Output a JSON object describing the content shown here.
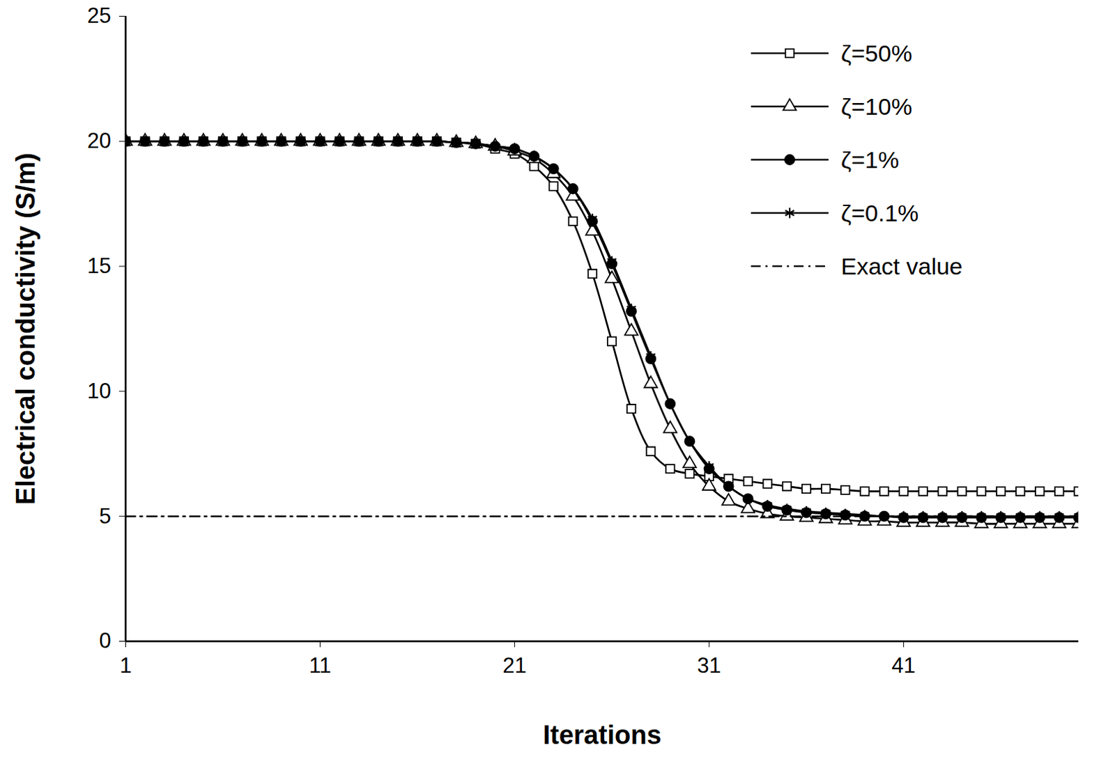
{
  "chart_data": {
    "type": "line",
    "x_label": "Iterations",
    "y_label": "Electrical conductivity (S/m)",
    "x": [
      1,
      2,
      3,
      4,
      5,
      6,
      7,
      8,
      9,
      10,
      11,
      12,
      13,
      14,
      15,
      16,
      17,
      18,
      19,
      20,
      21,
      22,
      23,
      24,
      25,
      26,
      27,
      28,
      29,
      30,
      31,
      32,
      33,
      34,
      35,
      36,
      37,
      38,
      39,
      40,
      41,
      42,
      43,
      44,
      45,
      46,
      47,
      48,
      49,
      50
    ],
    "xlim": [
      1,
      50
    ],
    "xticks": [
      1,
      11,
      21,
      31,
      41
    ],
    "ylim": [
      0,
      25
    ],
    "yticks": [
      0,
      5,
      10,
      15,
      20,
      25
    ],
    "grid": false,
    "legend": "top-right",
    "series": [
      {
        "name": "ζ=50%",
        "color": "#000000",
        "marker": "square-open",
        "line_style": "solid",
        "values": [
          20,
          20,
          20,
          20,
          20,
          20,
          20,
          20,
          20,
          20,
          20,
          20,
          20,
          20,
          20,
          20,
          20,
          19.95,
          19.9,
          19.7,
          19.5,
          19.0,
          18.2,
          16.8,
          14.7,
          12.0,
          9.3,
          7.6,
          6.9,
          6.7,
          6.6,
          6.5,
          6.4,
          6.3,
          6.2,
          6.1,
          6.1,
          6.05,
          6.0,
          6.0,
          6.0,
          6.0,
          6.0,
          6.0,
          6.0,
          6.0,
          6.0,
          6.0,
          6.0,
          6.0
        ]
      },
      {
        "name": "ζ=10%",
        "color": "#000000",
        "marker": "triangle-open",
        "line_style": "solid",
        "values": [
          20,
          20,
          20,
          20,
          20,
          20,
          20,
          20,
          20,
          20,
          20,
          20,
          20,
          20,
          20,
          20,
          20,
          19.95,
          19.9,
          19.8,
          19.6,
          19.3,
          18.7,
          17.8,
          16.4,
          14.5,
          12.4,
          10.3,
          8.5,
          7.1,
          6.2,
          5.6,
          5.3,
          5.1,
          5.0,
          4.95,
          4.9,
          4.85,
          4.8,
          4.8,
          4.75,
          4.75,
          4.75,
          4.75,
          4.7,
          4.7,
          4.7,
          4.7,
          4.7,
          4.7
        ]
      },
      {
        "name": "ζ=1%",
        "color": "#000000",
        "marker": "circle",
        "line_style": "solid",
        "values": [
          20,
          20,
          20,
          20,
          20,
          20,
          20,
          20,
          20,
          20,
          20,
          20,
          20,
          20,
          20,
          20,
          20,
          19.95,
          19.9,
          19.8,
          19.7,
          19.4,
          18.9,
          18.1,
          16.8,
          15.1,
          13.2,
          11.3,
          9.5,
          8.0,
          6.9,
          6.2,
          5.7,
          5.4,
          5.25,
          5.15,
          5.1,
          5.05,
          5.0,
          5.0,
          4.95,
          4.95,
          4.95,
          4.95,
          4.95,
          4.95,
          4.95,
          4.95,
          4.95,
          4.95
        ]
      },
      {
        "name": "ζ=0.1%",
        "color": "#000000",
        "marker": "asterisk",
        "line_style": "solid",
        "values": [
          20,
          20,
          20,
          20,
          20,
          20,
          20,
          20,
          20,
          20,
          20,
          20,
          20,
          20,
          20,
          20,
          20,
          19.95,
          19.9,
          19.8,
          19.7,
          19.4,
          18.9,
          18.1,
          16.9,
          15.2,
          13.3,
          11.4,
          9.5,
          8.0,
          7.0,
          6.2,
          5.7,
          5.45,
          5.3,
          5.2,
          5.15,
          5.1,
          5.05,
          5.0,
          5.0,
          5.0,
          5.0,
          5.0,
          5.0,
          5.0,
          5.0,
          5.0,
          5.0,
          5.0
        ]
      },
      {
        "name": "Exact value",
        "color": "#000000",
        "marker": "none",
        "line_style": "dashdot",
        "values": [
          5,
          5,
          5,
          5,
          5,
          5,
          5,
          5,
          5,
          5,
          5,
          5,
          5,
          5,
          5,
          5,
          5,
          5,
          5,
          5,
          5,
          5,
          5,
          5,
          5,
          5,
          5,
          5,
          5,
          5,
          5,
          5,
          5,
          5,
          5,
          5,
          5,
          5,
          5,
          5,
          5,
          5,
          5,
          5,
          5,
          5,
          5,
          5,
          5,
          5
        ]
      }
    ]
  }
}
